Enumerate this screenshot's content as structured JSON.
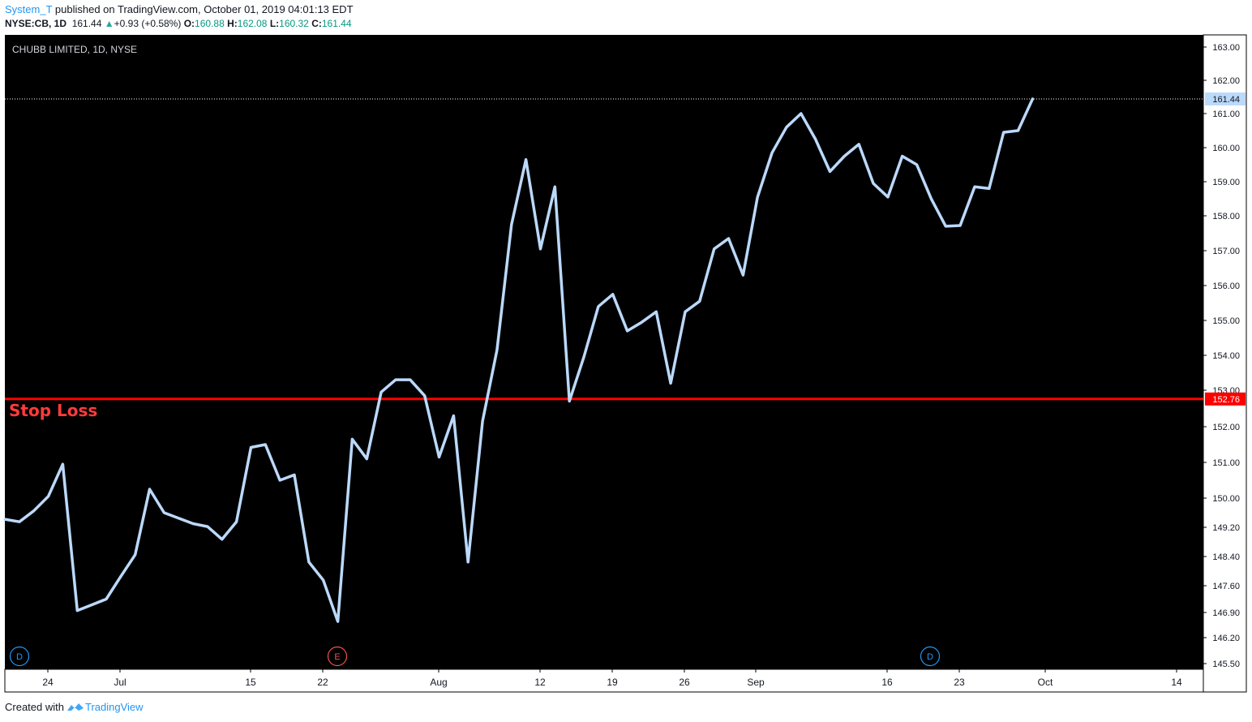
{
  "header": {
    "user": "System_T",
    "published_text": "published on TradingView.com, October 01, 2019 04:01:13 EDT",
    "symbol": "NYSE:CB, 1D",
    "last": "161.44",
    "change": "+0.93 (+0.58%)",
    "open_label": "O:",
    "open": "160.88",
    "high_label": "H:",
    "high": "162.08",
    "low_label": "L:",
    "low": "160.32",
    "close_label": "C:",
    "close": "161.44"
  },
  "footer": {
    "created_with": "Created with",
    "brand": "TradingView"
  },
  "colors": {
    "background": "#000000",
    "line": "#bbd9fb",
    "stop_loss": "#ff0000",
    "price_tag_bg": "#bbd9fb",
    "axis_text": "#131722",
    "dividend_marker": "#2196f3",
    "earnings_marker": "#ef5350"
  },
  "chart_data": {
    "type": "line",
    "title": "CHUBB LIMITED, 1D, NYSE",
    "grid": false,
    "y_ticks": [
      "163.00",
      "162.00",
      "161.00",
      "160.00",
      "159.00",
      "158.00",
      "157.00",
      "156.00",
      "155.00",
      "154.00",
      "153.00",
      "152.00",
      "151.00",
      "150.00",
      "149.20",
      "148.40",
      "147.60",
      "146.90",
      "146.20",
      "145.50"
    ],
    "x_ticks": [
      "24",
      "Jul",
      "15",
      "22",
      "Aug",
      "12",
      "19",
      "26",
      "Sep",
      "16",
      "23",
      "Oct",
      "14"
    ],
    "current_price_label": "161.44",
    "current_price": 161.44,
    "series": [
      {
        "values": [
          149.42,
          149.35,
          149.65,
          150.05,
          150.95,
          146.95,
          147.1,
          147.25,
          147.85,
          148.45,
          150.25,
          149.6,
          149.45,
          149.3,
          149.22,
          148.87,
          149.35,
          151.42,
          151.5,
          150.5,
          150.65,
          148.25,
          147.75,
          146.65,
          151.65,
          151.1,
          152.95,
          153.3,
          153.3,
          152.85,
          151.15,
          152.3,
          148.25,
          152.15,
          154.15,
          157.75,
          159.65,
          157.05,
          158.85,
          152.7,
          153.95,
          155.4,
          155.75,
          154.7,
          154.95,
          155.25,
          153.2,
          155.25,
          155.55,
          157.05,
          157.35,
          156.3,
          158.55,
          159.85,
          160.6,
          161.0,
          160.25,
          159.3,
          159.75,
          160.1,
          158.95,
          158.55,
          159.75,
          159.5,
          158.5,
          157.7,
          157.72,
          158.85,
          158.8,
          160.45,
          160.5,
          161.44
        ]
      }
    ],
    "horizontal_lines": [
      {
        "label": "Stop Loss",
        "value": 152.76,
        "tag": "152.76"
      }
    ],
    "event_markers": [
      {
        "letter": "D",
        "type": "dividend"
      },
      {
        "letter": "E",
        "type": "earnings"
      },
      {
        "letter": "D",
        "type": "dividend"
      }
    ]
  }
}
